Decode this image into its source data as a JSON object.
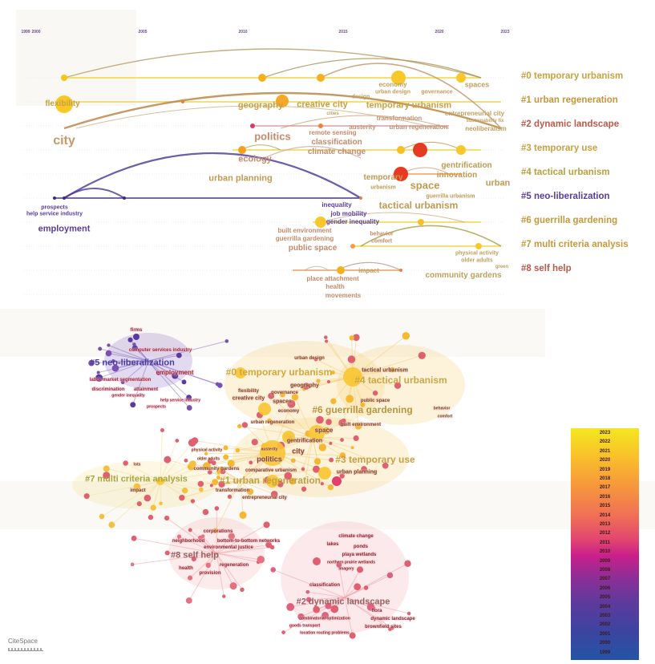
{
  "timeline": {
    "years": [
      "1999",
      "2000",
      "2005",
      "2010",
      "2015",
      "2020",
      "2023"
    ],
    "clusters": [
      {
        "label": "#0 temporary urbanism",
        "color": "#c9a23f"
      },
      {
        "label": "#1 urban regeneration",
        "color": "#c4963a"
      },
      {
        "label": "#2 dynamic landscape",
        "color": "#b95a4c"
      },
      {
        "label": "#3 temporary use",
        "color": "#c9a23f"
      },
      {
        "label": "#4 tactical urbanism",
        "color": "#b9a040"
      },
      {
        "label": "#5 neo-liberalization",
        "color": "#5b3d9c"
      },
      {
        "label": "#6 guerrilla gardening",
        "color": "#c09a3c"
      },
      {
        "label": "#7 multi criteria analysis",
        "color": "#c49a3c"
      },
      {
        "label": "#8 self help",
        "color": "#b95a4c"
      }
    ],
    "keywords": [
      "flexibility",
      "city",
      "economy",
      "urban design",
      "design",
      "governance",
      "spaces",
      "entrepreneurial city",
      "sustainability fix",
      "neoliberalism",
      "geography",
      "creative city",
      "temporary urbanism",
      "cities",
      "transformation",
      "austerity",
      "urban regeneration",
      "politics",
      "remote sensing",
      "classification",
      "climate change",
      "ecology",
      "urban planning",
      "temporary",
      "urbanism",
      "space",
      "innovation",
      "gentrification",
      "urban",
      "guerrilla urbanism",
      "prospects",
      "help service industry",
      "employment",
      "tactical urbanism",
      "inequality",
      "job mobility",
      "gender inequality",
      "built environment",
      "guerrilla gardening",
      "behavior",
      "comfort",
      "public space",
      "physical activity",
      "older adults",
      "impact",
      "place attachment",
      "health",
      "movements",
      "community gardens",
      "green"
    ]
  },
  "network": {
    "clusters": [
      {
        "label": "#5 neo-liberalization",
        "color": "#4b3a9e"
      },
      {
        "label": "#0 temporary urbanism",
        "color": "#d2a83e"
      },
      {
        "label": "#4 tactical urbanism",
        "color": "#c8a84a"
      },
      {
        "label": "#6 guerrilla gardening",
        "color": "#b8963e"
      },
      {
        "label": "#3 temporary use",
        "color": "#c8a040"
      },
      {
        "label": "#7 multi criteria analysis",
        "color": "#a9a53e"
      },
      {
        "label": "#1 urban regeneration",
        "color": "#c0a040"
      },
      {
        "label": "#8 self help",
        "color": "#9a6060"
      },
      {
        "label": "#2 dynamic landscape",
        "color": "#9a6060"
      }
    ],
    "keywords": [
      "firms",
      "computer services industry",
      "employment",
      "labor market segmentation",
      "discrimination",
      "attainment",
      "gender inequality",
      "help service industry",
      "prospects",
      "urban design",
      "tactical urbanism",
      "geography",
      "flexibility",
      "governance",
      "creative city",
      "spaces",
      "economy",
      "public space",
      "urban regeneration",
      "space",
      "built environment",
      "gentrification",
      "politics",
      "city",
      "austerity",
      "urban planning",
      "comparative urbanism",
      "community gardens",
      "transformation",
      "impact",
      "entrepreneurial city",
      "physical activity",
      "older adults",
      "lots",
      "corporations",
      "neighborhood",
      "bottom-to-bottom networks",
      "environmental justice",
      "health",
      "provision",
      "regeneration",
      "climate change",
      "lakes",
      "ponds",
      "playa wetlands",
      "northern prairie wetlands",
      "imagery",
      "classification",
      "flora",
      "dynamic landscape",
      "brownfield sites",
      "combinatorial optimization",
      "goods transport",
      "location routing problems",
      "behavior",
      "comfort"
    ]
  },
  "legend": {
    "years": [
      "2023",
      "2022",
      "2021",
      "2020",
      "2019",
      "2018",
      "2017",
      "2016",
      "2015",
      "2014",
      "2013",
      "2012",
      "2011",
      "2010",
      "2009",
      "2008",
      "2007",
      "2006",
      "2005",
      "2004",
      "2003",
      "2002",
      "2001",
      "2000",
      "1999"
    ]
  },
  "logo": {
    "text": "CiteSpace"
  }
}
